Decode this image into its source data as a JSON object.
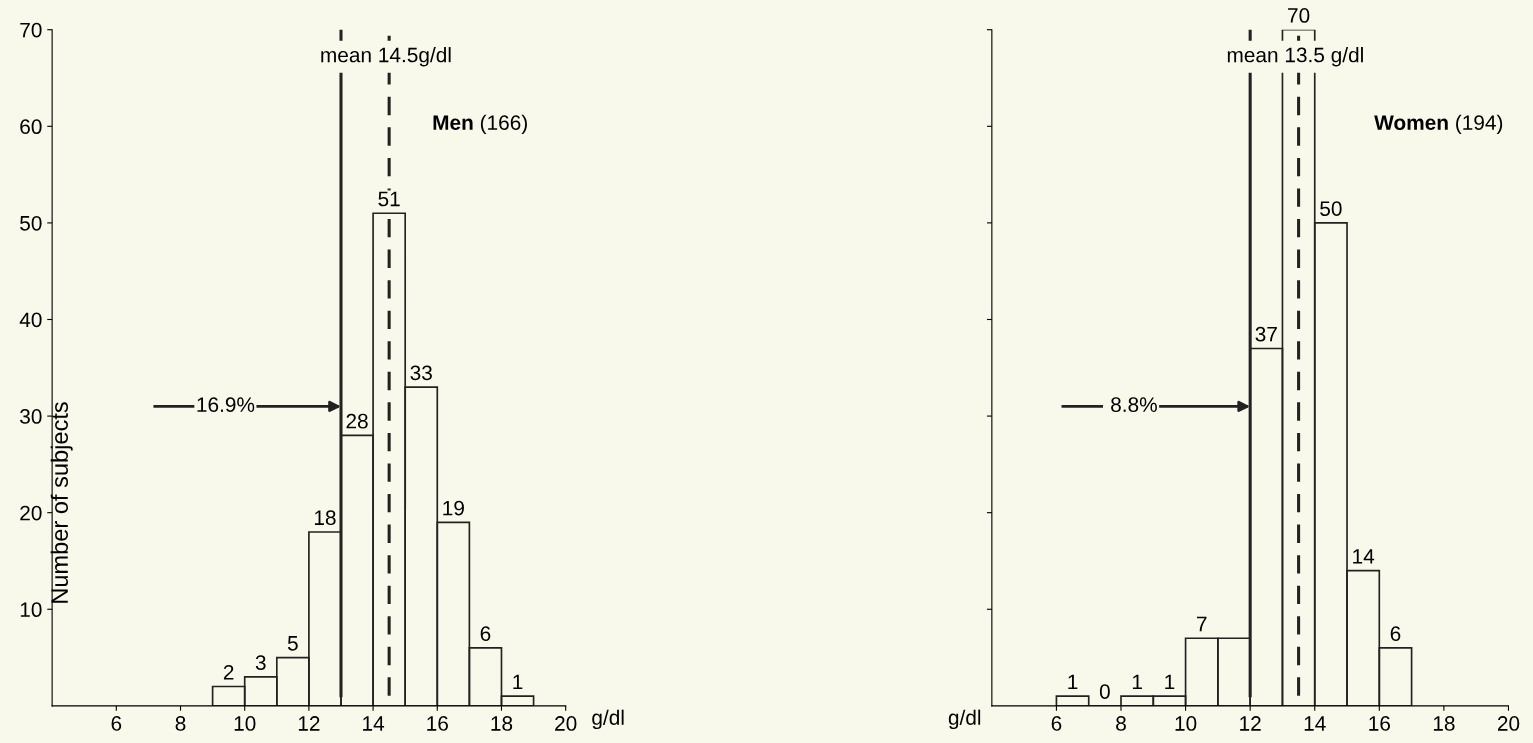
{
  "chart_data": [
    {
      "type": "histogram",
      "xlabel": "g/dl",
      "ylabel": "Number of subjects",
      "color": "#222222",
      "bins": [
        9,
        10,
        11,
        12,
        13,
        14,
        15,
        16,
        17,
        18,
        19
      ],
      "values": [
        2,
        3,
        5,
        18,
        28,
        51,
        33,
        19,
        6,
        1
      ],
      "data_labels": true,
      "xlim": [
        4,
        20
      ],
      "xticks": [
        6,
        8,
        10,
        12,
        14,
        16,
        18,
        20
      ],
      "ylim": [
        0,
        70
      ],
      "yticks": [
        10,
        20,
        30,
        40,
        50,
        60,
        70
      ],
      "grid": false,
      "ref_lines": [
        {
          "axis": "x",
          "value": 13,
          "label": null,
          "line_style": "solid"
        },
        {
          "axis": "x",
          "value": 14.5,
          "label": "mean 14.5g/dl",
          "line_style": "dashed"
        }
      ],
      "annotations": [
        "Men (166)",
        {
          "text": "16.9%",
          "x": 13,
          "y": 31
        }
      ]
    },
    {
      "type": "histogram",
      "xlabel": "g/dl",
      "color": "#222222",
      "bins": [
        6,
        7,
        8,
        9,
        10,
        11,
        12,
        13,
        14,
        15,
        16,
        17
      ],
      "values": [
        1,
        0,
        1,
        1,
        7,
        7,
        37,
        70,
        50,
        14,
        6
      ],
      "value_labels": [
        "1",
        "0",
        "1",
        "1",
        "7",
        null,
        "37",
        "70",
        "50",
        "14",
        "6"
      ],
      "xlim": [
        4,
        20
      ],
      "xticks": [
        6,
        8,
        10,
        12,
        14,
        16,
        18,
        20
      ],
      "ylim": [
        0,
        70
      ],
      "yticks": [
        10,
        20,
        30,
        40,
        50,
        60,
        70
      ],
      "tick_labels": "x",
      "grid": false,
      "ref_lines": [
        {
          "axis": "x",
          "value": 12,
          "label": null,
          "line_style": "solid"
        },
        {
          "axis": "x",
          "value": 13.5,
          "label": "mean 13.5 g/dl",
          "line_style": "dashed"
        }
      ],
      "annotations": [
        "Women (194)",
        {
          "text": "8.8%",
          "x": 12,
          "y": 31
        }
      ]
    }
  ]
}
